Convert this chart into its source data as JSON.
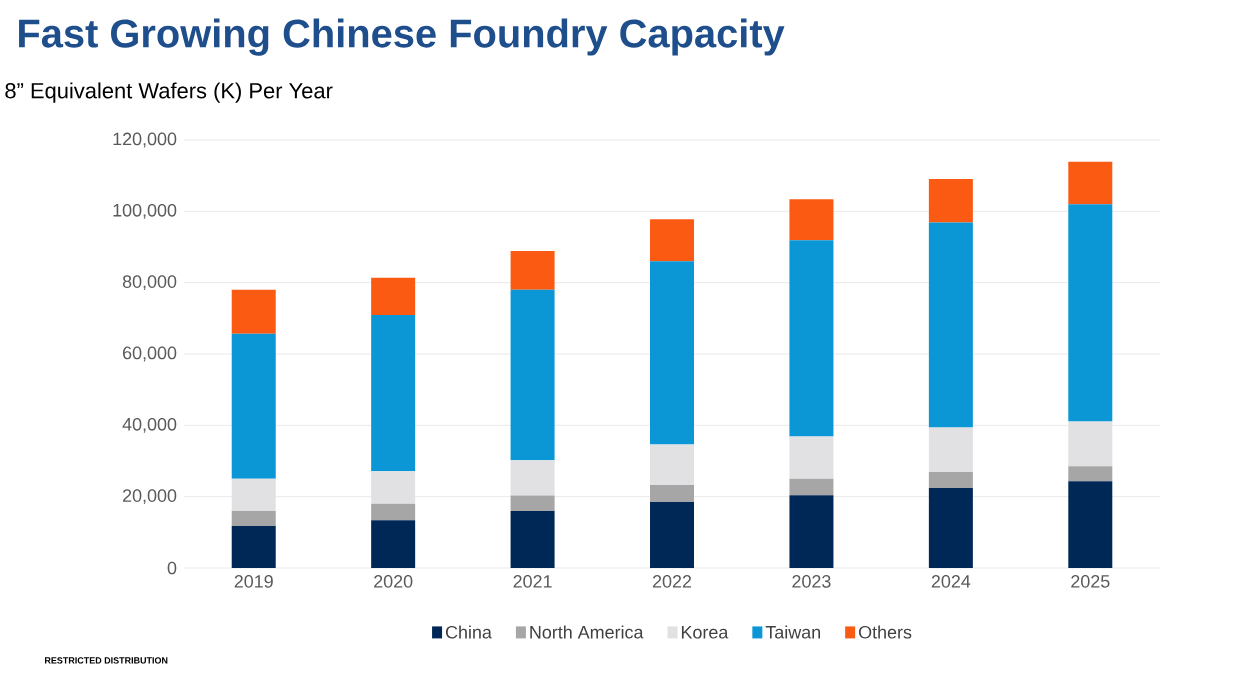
{
  "chart_data": {
    "type": "bar",
    "stacked": true,
    "title": "Fast Growing Chinese Foundry Capacity",
    "subtitle": "8” Equivalent Wafers (K) Per Year",
    "categories": [
      "2019",
      "2020",
      "2021",
      "2022",
      "2023",
      "2024",
      "2025"
    ],
    "series": [
      {
        "name": "China",
        "color": "#002856",
        "values": [
          11800,
          13400,
          16000,
          18500,
          20400,
          22400,
          24300
        ]
      },
      {
        "name": "North America",
        "color": "#a6a6a6",
        "values": [
          4200,
          4600,
          4300,
          4800,
          4600,
          4500,
          4200
        ]
      },
      {
        "name": "Korea",
        "color": "#e1e1e3",
        "values": [
          9000,
          9100,
          9900,
          11300,
          11900,
          12500,
          12600
        ]
      },
      {
        "name": "Taiwan",
        "color": "#0b96d6",
        "values": [
          40700,
          43800,
          47800,
          51400,
          55000,
          57500,
          60900
        ]
      },
      {
        "name": "Others",
        "color": "#fb5a13",
        "values": [
          12300,
          10500,
          10900,
          11800,
          11500,
          12200,
          11900
        ]
      }
    ],
    "ylim": [
      0,
      120000
    ],
    "yticks": [
      {
        "value": 0,
        "label": "0"
      },
      {
        "value": 20000,
        "label": "20,000"
      },
      {
        "value": 40000,
        "label": "40,000"
      },
      {
        "value": 60000,
        "label": "60,000"
      },
      {
        "value": 80000,
        "label": "80,000"
      },
      {
        "value": 100000,
        "label": "100,000"
      },
      {
        "value": 120000,
        "label": "120,000"
      }
    ],
    "grid": "y",
    "legend": "bottom",
    "annotations": [
      "RESTRICTED DISTRIBUTION"
    ]
  }
}
